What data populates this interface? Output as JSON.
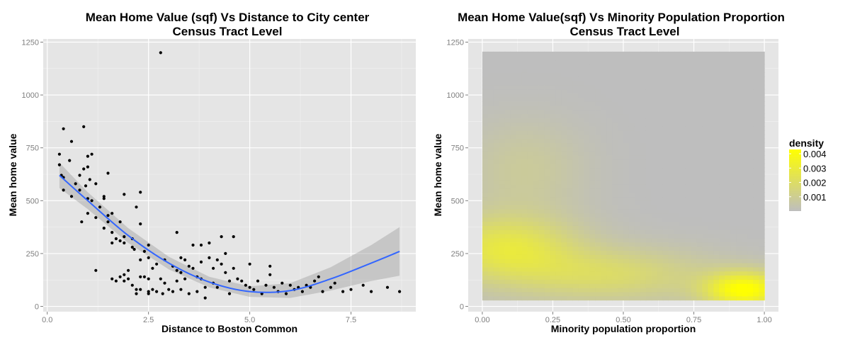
{
  "chart_data": [
    {
      "type": "scatter",
      "title": "Mean Home Value (sqf) Vs Distance to City center",
      "subtitle": "Census Tract Level",
      "xlabel": "Distance to Boston Common",
      "ylabel": "Mean home value",
      "xlim": [
        -0.1,
        9.1
      ],
      "ylim": [
        -25,
        1265
      ],
      "x_ticks": [
        0.0,
        2.5,
        5.0,
        7.5
      ],
      "x_tick_labels": [
        "0.0",
        "2.5",
        "5.0",
        "7.5"
      ],
      "y_ticks": [
        0,
        250,
        500,
        750,
        1000,
        1250
      ],
      "y_tick_labels": [
        "0",
        "250",
        "500",
        "750",
        "1000",
        "1250"
      ],
      "grid": true,
      "points": [
        [
          0.3,
          720
        ],
        [
          0.3,
          670
        ],
        [
          0.35,
          620
        ],
        [
          0.4,
          840
        ],
        [
          0.4,
          610
        ],
        [
          0.4,
          550
        ],
        [
          0.55,
          690
        ],
        [
          0.6,
          780
        ],
        [
          0.6,
          520
        ],
        [
          0.7,
          580
        ],
        [
          0.8,
          620
        ],
        [
          0.8,
          550
        ],
        [
          0.85,
          400
        ],
        [
          0.9,
          850
        ],
        [
          0.9,
          650
        ],
        [
          0.95,
          570
        ],
        [
          1.0,
          710
        ],
        [
          1.0,
          660
        ],
        [
          1.0,
          510
        ],
        [
          1.0,
          440
        ],
        [
          1.05,
          600
        ],
        [
          1.1,
          720
        ],
        [
          1.1,
          500
        ],
        [
          1.2,
          580
        ],
        [
          1.2,
          420
        ],
        [
          1.2,
          170
        ],
        [
          1.3,
          470
        ],
        [
          1.4,
          520
        ],
        [
          1.4,
          510
        ],
        [
          1.4,
          370
        ],
        [
          1.5,
          630
        ],
        [
          1.5,
          430
        ],
        [
          1.5,
          400
        ],
        [
          1.6,
          440
        ],
        [
          1.6,
          350
        ],
        [
          1.6,
          300
        ],
        [
          1.6,
          130
        ],
        [
          1.7,
          320
        ],
        [
          1.7,
          120
        ],
        [
          1.8,
          400
        ],
        [
          1.8,
          310
        ],
        [
          1.8,
          140
        ],
        [
          1.9,
          530
        ],
        [
          1.9,
          330
        ],
        [
          1.9,
          300
        ],
        [
          1.9,
          150
        ],
        [
          1.9,
          120
        ],
        [
          2.0,
          170
        ],
        [
          2.0,
          130
        ],
        [
          2.1,
          320
        ],
        [
          2.1,
          280
        ],
        [
          2.1,
          100
        ],
        [
          2.15,
          270
        ],
        [
          2.2,
          470
        ],
        [
          2.2,
          80
        ],
        [
          2.2,
          60
        ],
        [
          2.3,
          540
        ],
        [
          2.3,
          390
        ],
        [
          2.3,
          220
        ],
        [
          2.3,
          140
        ],
        [
          2.3,
          80
        ],
        [
          2.4,
          260
        ],
        [
          2.4,
          140
        ],
        [
          2.5,
          290
        ],
        [
          2.5,
          230
        ],
        [
          2.5,
          130
        ],
        [
          2.5,
          70
        ],
        [
          2.5,
          60
        ],
        [
          2.6,
          180
        ],
        [
          2.6,
          80
        ],
        [
          2.7,
          200
        ],
        [
          2.7,
          70
        ],
        [
          2.8,
          1200
        ],
        [
          2.8,
          130
        ],
        [
          2.85,
          60
        ],
        [
          2.9,
          220
        ],
        [
          2.9,
          110
        ],
        [
          3.0,
          80
        ],
        [
          3.1,
          190
        ],
        [
          3.1,
          70
        ],
        [
          3.2,
          350
        ],
        [
          3.2,
          170
        ],
        [
          3.2,
          120
        ],
        [
          3.3,
          230
        ],
        [
          3.3,
          160
        ],
        [
          3.3,
          80
        ],
        [
          3.4,
          220
        ],
        [
          3.4,
          130
        ],
        [
          3.5,
          190
        ],
        [
          3.5,
          60
        ],
        [
          3.6,
          290
        ],
        [
          3.6,
          180
        ],
        [
          3.7,
          140
        ],
        [
          3.7,
          70
        ],
        [
          3.8,
          290
        ],
        [
          3.8,
          210
        ],
        [
          3.8,
          130
        ],
        [
          3.9,
          90
        ],
        [
          3.9,
          40
        ],
        [
          4.0,
          300
        ],
        [
          4.0,
          230
        ],
        [
          4.1,
          180
        ],
        [
          4.1,
          110
        ],
        [
          4.2,
          220
        ],
        [
          4.2,
          90
        ],
        [
          4.3,
          330
        ],
        [
          4.3,
          200
        ],
        [
          4.4,
          250
        ],
        [
          4.4,
          160
        ],
        [
          4.5,
          120
        ],
        [
          4.5,
          60
        ],
        [
          4.6,
          330
        ],
        [
          4.6,
          180
        ],
        [
          4.7,
          130
        ],
        [
          4.8,
          120
        ],
        [
          4.9,
          100
        ],
        [
          5.0,
          200
        ],
        [
          5.0,
          90
        ],
        [
          5.1,
          80
        ],
        [
          5.2,
          120
        ],
        [
          5.3,
          60
        ],
        [
          5.4,
          100
        ],
        [
          5.5,
          190
        ],
        [
          5.5,
          150
        ],
        [
          5.6,
          90
        ],
        [
          5.7,
          70
        ],
        [
          5.8,
          110
        ],
        [
          5.9,
          60
        ],
        [
          6.0,
          100
        ],
        [
          6.1,
          80
        ],
        [
          6.2,
          90
        ],
        [
          6.3,
          70
        ],
        [
          6.4,
          100
        ],
        [
          6.5,
          90
        ],
        [
          6.6,
          120
        ],
        [
          6.7,
          140
        ],
        [
          6.8,
          70
        ],
        [
          7.0,
          90
        ],
        [
          7.1,
          110
        ],
        [
          7.3,
          70
        ],
        [
          7.5,
          80
        ],
        [
          7.8,
          100
        ],
        [
          8.0,
          70
        ],
        [
          8.4,
          90
        ],
        [
          8.7,
          70
        ]
      ],
      "fit": {
        "x": [
          0.3,
          1,
          2,
          3,
          4,
          5,
          6,
          7,
          8,
          8.7
        ],
        "y": [
          620,
          500,
          335,
          205,
          115,
          70,
          75,
          130,
          205,
          260
        ],
        "lower": [
          560,
          460,
          300,
          175,
          90,
          45,
          40,
          75,
          120,
          145
        ],
        "upper": [
          680,
          540,
          370,
          235,
          140,
          95,
          110,
          185,
          290,
          375
        ]
      },
      "colors": {
        "points": "#000000",
        "fit": "#3366ff",
        "ribbon": "#999999",
        "panel": "#e5e5e5"
      }
    },
    {
      "type": "heatmap",
      "title": "Mean Home Value(sqf) Vs Minority Population Proportion",
      "subtitle": "Census Tract Level",
      "xlabel": "Minority population proportion",
      "ylabel": "Mean home value",
      "xlim": [
        -0.05,
        1.05
      ],
      "ylim": [
        -25,
        1265
      ],
      "data_xlim": [
        0.0,
        1.0
      ],
      "data_ylim": [
        30,
        1205
      ],
      "x_ticks": [
        0.0,
        0.25,
        0.5,
        0.75,
        1.0
      ],
      "x_tick_labels": [
        "0.00",
        "0.25",
        "0.50",
        "0.75",
        "1.00"
      ],
      "y_ticks": [
        0,
        250,
        500,
        750,
        1000,
        1250
      ],
      "y_tick_labels": [
        "0",
        "250",
        "500",
        "750",
        "1000",
        "1250"
      ],
      "grid": true,
      "legend": {
        "title": "density",
        "position": "right",
        "breaks": [
          0.001,
          0.002,
          0.003,
          0.004
        ],
        "labels": [
          "0.001",
          "0.002",
          "0.003",
          "0.004"
        ],
        "range": [
          0.0,
          0.0043
        ],
        "low_color": "#bebebe",
        "high_color": "#ffff00"
      },
      "density_components": [
        {
          "mx": 0.93,
          "my": 80,
          "sx": 0.1,
          "sy": 60,
          "w": 0.0043
        },
        {
          "mx": 0.08,
          "my": 280,
          "sx": 0.18,
          "sy": 110,
          "w": 0.0026
        },
        {
          "mx": 0.45,
          "my": 150,
          "sx": 0.25,
          "sy": 90,
          "w": 0.0018
        },
        {
          "mx": 0.15,
          "my": 650,
          "sx": 0.15,
          "sy": 160,
          "w": 0.0008
        }
      ]
    }
  ]
}
